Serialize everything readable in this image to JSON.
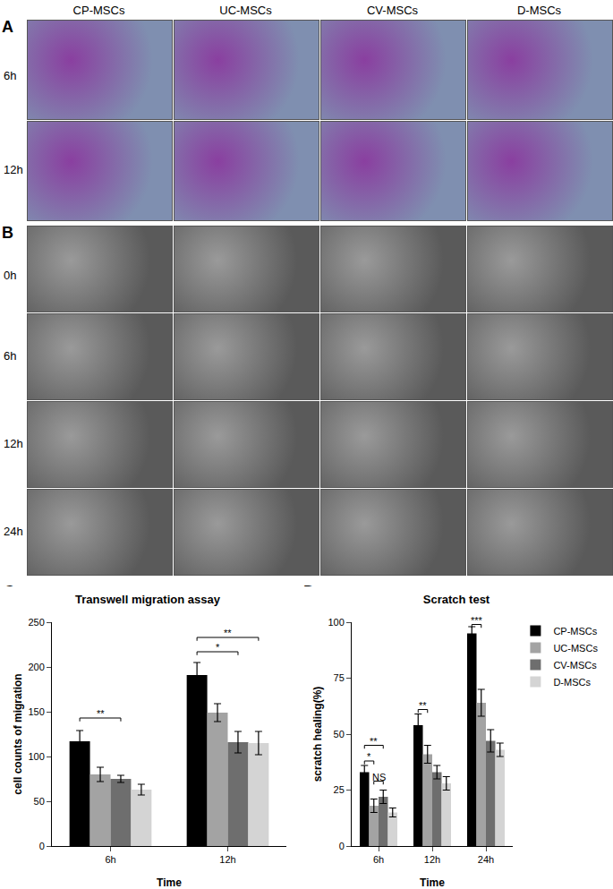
{
  "figure": {
    "columns": [
      "CP-MSCs",
      "UC-MSCs",
      "CV-MSCs",
      "D-MSCs"
    ],
    "panel_A": {
      "label": "A",
      "rows": [
        "6h",
        "12h"
      ]
    },
    "panel_B": {
      "label": "B",
      "rows": [
        "0h",
        "6h",
        "12h",
        "24h"
      ]
    }
  },
  "chart_data": [
    {
      "panel": "C",
      "type": "bar",
      "title": "Transwell migration assay",
      "x_label": "Time",
      "y_label": "cell counts of migration",
      "categories": [
        "6h",
        "12h"
      ],
      "series": [
        {
          "name": "CP-MSCs",
          "color": "#000000",
          "values": [
            117,
            191
          ],
          "errors": [
            12,
            14
          ]
        },
        {
          "name": "UC-MSCs",
          "color": "#a3a3a3",
          "values": [
            80,
            149
          ],
          "errors": [
            8,
            10
          ]
        },
        {
          "name": "CV-MSCs",
          "color": "#6e6e6e",
          "values": [
            75,
            116
          ],
          "errors": [
            4,
            12
          ]
        },
        {
          "name": "D-MSCs",
          "color": "#d4d4d4",
          "values": [
            63,
            115
          ],
          "errors": [
            6,
            13
          ]
        }
      ],
      "ylim": [
        0,
        250
      ],
      "yticks": [
        0,
        50,
        100,
        150,
        200,
        250
      ],
      "significance": [
        {
          "category": "6h",
          "from": "CP-MSCs",
          "to": "CV-MSCs",
          "y": 143,
          "label": "**"
        },
        {
          "category": "12h",
          "from": "CP-MSCs",
          "to": "CV-MSCs",
          "y": 217,
          "label": "*"
        },
        {
          "category": "12h",
          "from": "CP-MSCs",
          "to": "D-MSCs",
          "y": 233,
          "label": "**"
        }
      ]
    },
    {
      "panel": "D",
      "type": "bar",
      "title": "Scratch test",
      "x_label": "Time",
      "y_label": "scratch healing(%)",
      "categories": [
        "6h",
        "12h",
        "24h"
      ],
      "series": [
        {
          "name": "CP-MSCs",
          "color": "#000000",
          "values": [
            33,
            54,
            95
          ],
          "errors": [
            3,
            5,
            3
          ]
        },
        {
          "name": "UC-MSCs",
          "color": "#a3a3a3",
          "values": [
            18,
            41,
            64
          ],
          "errors": [
            3,
            4,
            6
          ]
        },
        {
          "name": "CV-MSCs",
          "color": "#6e6e6e",
          "values": [
            22,
            33,
            47
          ],
          "errors": [
            3,
            3,
            5
          ]
        },
        {
          "name": "D-MSCs",
          "color": "#d4d4d4",
          "values": [
            15,
            28,
            43
          ],
          "errors": [
            2,
            3,
            3
          ]
        }
      ],
      "ylim": [
        0,
        100
      ],
      "yticks": [
        0,
        25,
        50,
        75,
        100
      ],
      "legend": "right",
      "significance": [
        {
          "category": "6h",
          "from": "CP-MSCs",
          "to": "CV-MSCs",
          "y": 45,
          "label": "**"
        },
        {
          "category": "6h",
          "from": "CP-MSCs",
          "to": "UC-MSCs",
          "y": 38,
          "label": "*"
        },
        {
          "category": "6h",
          "from": "UC-MSCs",
          "to": "CV-MSCs",
          "y": 29,
          "label": "NS"
        },
        {
          "category": "12h",
          "from": "CP-MSCs",
          "to": "UC-MSCs",
          "y": 61,
          "label": "**"
        },
        {
          "category": "24h",
          "from": "CP-MSCs",
          "to": "UC-MSCs",
          "y": 99,
          "label": "***"
        }
      ]
    }
  ]
}
